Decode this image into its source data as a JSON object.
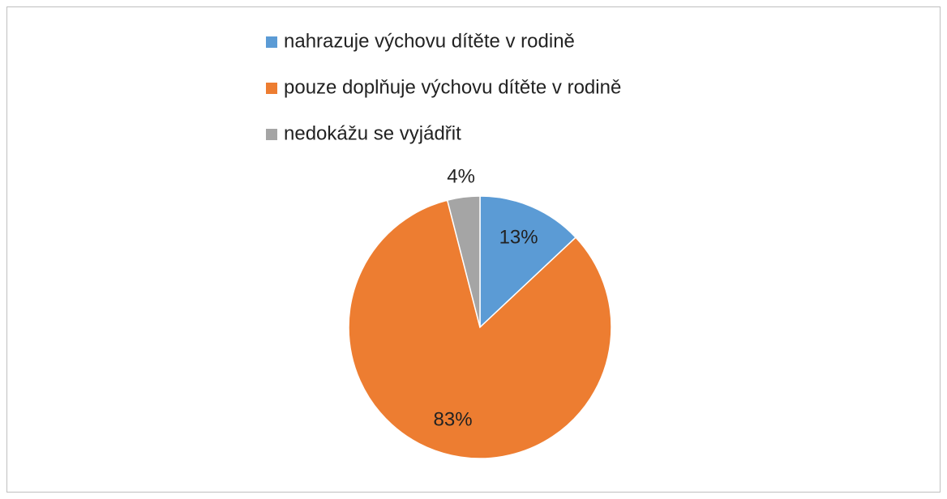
{
  "chart_data": {
    "type": "pie",
    "categories": [
      "nahrazuje výchovu dítěte v rodině",
      "pouze doplňuje výchovu dítěte v rodině",
      "nedokážu se vyjádřit"
    ],
    "values": [
      13,
      83,
      4
    ],
    "value_labels": [
      "13%",
      "83%",
      "4%"
    ],
    "colors": [
      "#5b9bd5",
      "#ed7d31",
      "#a5a5a5"
    ],
    "legend": "top"
  }
}
